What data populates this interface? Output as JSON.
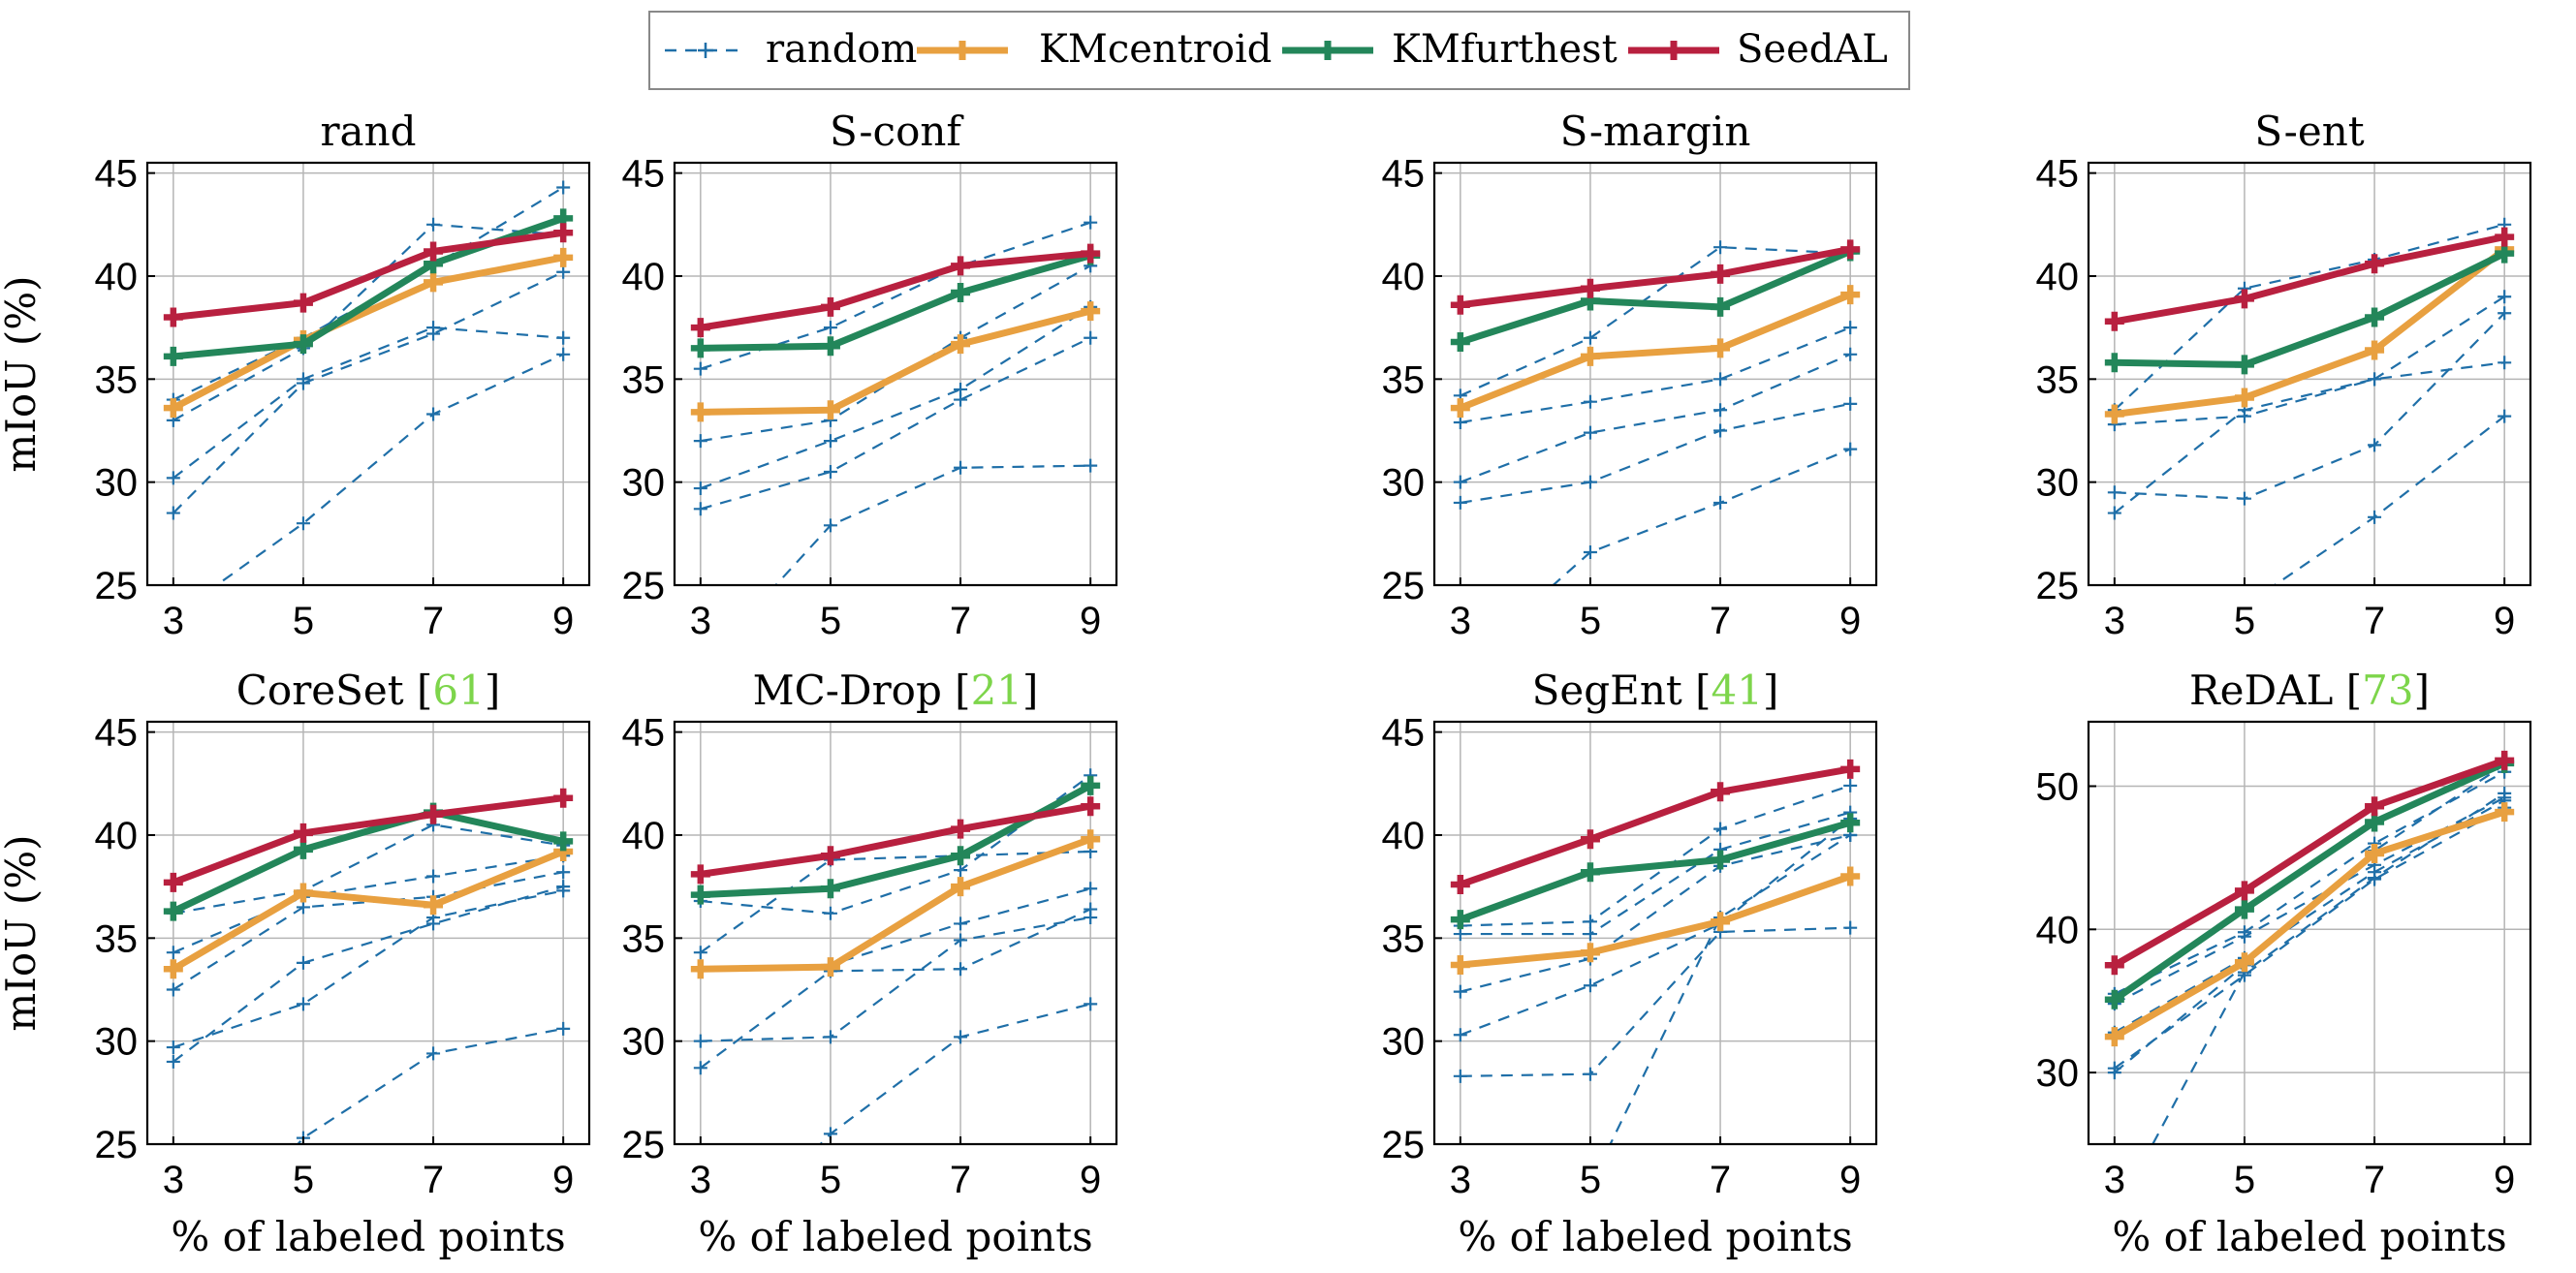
{
  "legend": {
    "entries": [
      {
        "name": "random",
        "color": "#1f6fa8",
        "style": "dashed"
      },
      {
        "name": "KMcentroid",
        "color": "#e8a040",
        "style": "solid"
      },
      {
        "name": "KMfurthest",
        "color": "#23865a",
        "style": "solid"
      },
      {
        "name": "SeedAL",
        "color": "#b8203f",
        "style": "solid"
      }
    ]
  },
  "ylabel": "mIoU (%)",
  "xlabel": "% of labeled points",
  "chart_data": [
    {
      "type": "line",
      "title": "rand",
      "cite": "",
      "x": [
        3,
        5,
        7,
        9
      ],
      "xticks": [
        3,
        5,
        7,
        9
      ],
      "ylim": [
        25,
        45.5
      ],
      "yticks": [
        25,
        30,
        35,
        40,
        45
      ],
      "grid": true,
      "random_runs": [
        [
          34.0,
          37.0,
          40.5,
          44.3
        ],
        [
          33.0,
          36.5,
          42.5,
          42.0
        ],
        [
          30.2,
          35.0,
          37.5,
          37.0
        ],
        [
          28.5,
          34.8,
          37.2,
          40.2
        ],
        [
          23.5,
          28.0,
          33.3,
          36.2
        ]
      ],
      "series": [
        {
          "name": "KMcentroid",
          "values": [
            33.6,
            36.9,
            39.7,
            40.9
          ]
        },
        {
          "name": "KMfurthest",
          "values": [
            36.1,
            36.7,
            40.6,
            42.8
          ]
        },
        {
          "name": "SeedAL",
          "values": [
            38.0,
            38.7,
            41.2,
            42.1
          ]
        }
      ]
    },
    {
      "type": "line",
      "title": "S-conf",
      "cite": "",
      "x": [
        3,
        5,
        7,
        9
      ],
      "xticks": [
        3,
        5,
        7,
        9
      ],
      "ylim": [
        25,
        45.5
      ],
      "yticks": [
        25,
        30,
        35,
        40,
        45
      ],
      "grid": true,
      "random_runs": [
        [
          35.5,
          37.5,
          40.5,
          42.6
        ],
        [
          32.0,
          33.0,
          37.0,
          40.5
        ],
        [
          29.7,
          32.0,
          34.5,
          38.5
        ],
        [
          28.7,
          30.5,
          34.0,
          37.0
        ],
        [
          21.0,
          27.9,
          30.7,
          30.8
        ]
      ],
      "series": [
        {
          "name": "KMcentroid",
          "values": [
            33.4,
            33.5,
            36.7,
            38.3
          ]
        },
        {
          "name": "KMfurthest",
          "values": [
            36.5,
            36.6,
            39.2,
            41.0
          ]
        },
        {
          "name": "SeedAL",
          "values": [
            37.5,
            38.5,
            40.5,
            41.1
          ]
        }
      ]
    },
    {
      "type": "line",
      "title": "S-margin",
      "cite": "",
      "x": [
        3,
        5,
        7,
        9
      ],
      "xticks": [
        3,
        5,
        7,
        9
      ],
      "ylim": [
        25,
        45.5
      ],
      "yticks": [
        25,
        30,
        35,
        40,
        45
      ],
      "grid": true,
      "random_runs": [
        [
          34.2,
          37.0,
          41.4,
          41.1
        ],
        [
          32.9,
          33.9,
          35.0,
          37.5
        ],
        [
          30.0,
          32.4,
          33.5,
          36.2
        ],
        [
          29.0,
          30.0,
          32.5,
          33.8
        ],
        [
          21.0,
          26.6,
          29.0,
          31.6
        ]
      ],
      "series": [
        {
          "name": "KMcentroid",
          "values": [
            33.6,
            36.1,
            36.5,
            39.1
          ]
        },
        {
          "name": "KMfurthest",
          "values": [
            36.8,
            38.8,
            38.5,
            41.2
          ]
        },
        {
          "name": "SeedAL",
          "values": [
            38.6,
            39.4,
            40.1,
            41.3
          ]
        }
      ]
    },
    {
      "type": "line",
      "title": "S-ent",
      "cite": "",
      "x": [
        3,
        5,
        7,
        9
      ],
      "xticks": [
        3,
        5,
        7,
        9
      ],
      "ylim": [
        25,
        45.5
      ],
      "yticks": [
        25,
        30,
        35,
        40,
        45
      ],
      "grid": true,
      "random_runs": [
        [
          33.5,
          39.4,
          40.8,
          42.5
        ],
        [
          32.8,
          33.2,
          35.0,
          39.0
        ],
        [
          29.5,
          29.2,
          31.8,
          38.2
        ],
        [
          28.5,
          33.5,
          35.0,
          35.8
        ],
        [
          22.0,
          24.0,
          28.3,
          33.2
        ]
      ],
      "series": [
        {
          "name": "KMcentroid",
          "values": [
            33.3,
            34.1,
            36.4,
            41.3
          ]
        },
        {
          "name": "KMfurthest",
          "values": [
            35.8,
            35.7,
            38.0,
            41.1
          ]
        },
        {
          "name": "SeedAL",
          "values": [
            37.8,
            38.9,
            40.6,
            41.9
          ]
        }
      ]
    },
    {
      "type": "line",
      "title": "CoreSet [",
      "cite": "61",
      "x": [
        3,
        5,
        7,
        9
      ],
      "xticks": [
        3,
        5,
        7,
        9
      ],
      "ylim": [
        25,
        45.5
      ],
      "yticks": [
        25,
        30,
        35,
        40,
        45
      ],
      "grid": true,
      "random_runs": [
        [
          36.2,
          37.3,
          40.5,
          39.5
        ],
        [
          34.3,
          37.0,
          38.0,
          39.0
        ],
        [
          32.5,
          36.5,
          37.0,
          38.2
        ],
        [
          29.7,
          31.8,
          36.0,
          37.3
        ],
        [
          29.0,
          33.8,
          35.7,
          37.5
        ],
        [
          18.0,
          25.3,
          29.4,
          30.6
        ]
      ],
      "series": [
        {
          "name": "KMcentroid",
          "values": [
            33.5,
            37.2,
            36.6,
            39.2
          ]
        },
        {
          "name": "KMfurthest",
          "values": [
            36.3,
            39.3,
            41.1,
            39.7
          ]
        },
        {
          "name": "SeedAL",
          "values": [
            37.7,
            40.1,
            41.0,
            41.8
          ]
        }
      ]
    },
    {
      "type": "line",
      "title": "MC-Drop [",
      "cite": "21",
      "x": [
        3,
        5,
        7,
        9
      ],
      "xticks": [
        3,
        5,
        7,
        9
      ],
      "ylim": [
        25,
        45.5
      ],
      "yticks": [
        25,
        30,
        35,
        40,
        45
      ],
      "grid": true,
      "random_runs": [
        [
          36.8,
          36.2,
          38.3,
          42.9
        ],
        [
          34.3,
          38.8,
          39.0,
          39.2
        ],
        [
          33.4,
          33.7,
          35.7,
          37.4
        ],
        [
          30.0,
          30.2,
          34.9,
          36.0
        ],
        [
          28.7,
          33.4,
          33.5,
          36.4
        ],
        [
          19.0,
          25.5,
          30.2,
          31.8
        ]
      ],
      "series": [
        {
          "name": "KMcentroid",
          "values": [
            33.5,
            33.6,
            37.5,
            39.8
          ]
        },
        {
          "name": "KMfurthest",
          "values": [
            37.1,
            37.4,
            39.0,
            42.4
          ]
        },
        {
          "name": "SeedAL",
          "values": [
            38.1,
            39.0,
            40.3,
            41.4
          ]
        }
      ]
    },
    {
      "type": "line",
      "title": "SegEnt [",
      "cite": "41",
      "x": [
        3,
        5,
        7,
        9
      ],
      "xticks": [
        3,
        5,
        7,
        9
      ],
      "ylim": [
        25,
        45.5
      ],
      "yticks": [
        25,
        30,
        35,
        40,
        45
      ],
      "grid": true,
      "random_runs": [
        [
          35.6,
          35.8,
          40.3,
          42.4
        ],
        [
          35.2,
          35.2,
          39.3,
          41.1
        ],
        [
          32.4,
          34.0,
          38.5,
          40.0
        ],
        [
          30.3,
          32.7,
          35.7,
          40.8
        ],
        [
          28.3,
          28.4,
          35.3,
          35.5
        ],
        [
          20.0,
          23.0,
          36.0,
          40.0
        ]
      ],
      "series": [
        {
          "name": "KMcentroid",
          "values": [
            33.7,
            34.3,
            35.8,
            38.0
          ]
        },
        {
          "name": "KMfurthest",
          "values": [
            35.9,
            38.2,
            38.8,
            40.6
          ]
        },
        {
          "name": "SeedAL",
          "values": [
            37.6,
            39.8,
            42.1,
            43.2
          ]
        }
      ]
    },
    {
      "type": "line",
      "title": "ReDAL [",
      "cite": "73",
      "x": [
        3,
        5,
        7,
        9
      ],
      "xticks": [
        3,
        5,
        7,
        9
      ],
      "ylim": [
        25,
        54.5
      ],
      "yticks": [
        30,
        40,
        50
      ],
      "grid": true,
      "random_runs": [
        [
          35.5,
          39.8,
          46.0,
          51.0
        ],
        [
          34.8,
          39.5,
          44.5,
          49.2
        ],
        [
          32.8,
          38.0,
          44.0,
          49.0
        ],
        [
          30.3,
          36.8,
          43.5,
          48.5
        ],
        [
          30.0,
          37.5,
          45.5,
          51.5
        ],
        [
          20.0,
          37.0,
          43.6,
          49.5
        ]
      ],
      "series": [
        {
          "name": "KMcentroid",
          "values": [
            32.5,
            37.7,
            45.3,
            48.2
          ]
        },
        {
          "name": "KMfurthest",
          "values": [
            35.1,
            41.4,
            47.5,
            51.6
          ]
        },
        {
          "name": "SeedAL",
          "values": [
            37.5,
            42.7,
            48.6,
            51.8
          ]
        }
      ]
    }
  ]
}
